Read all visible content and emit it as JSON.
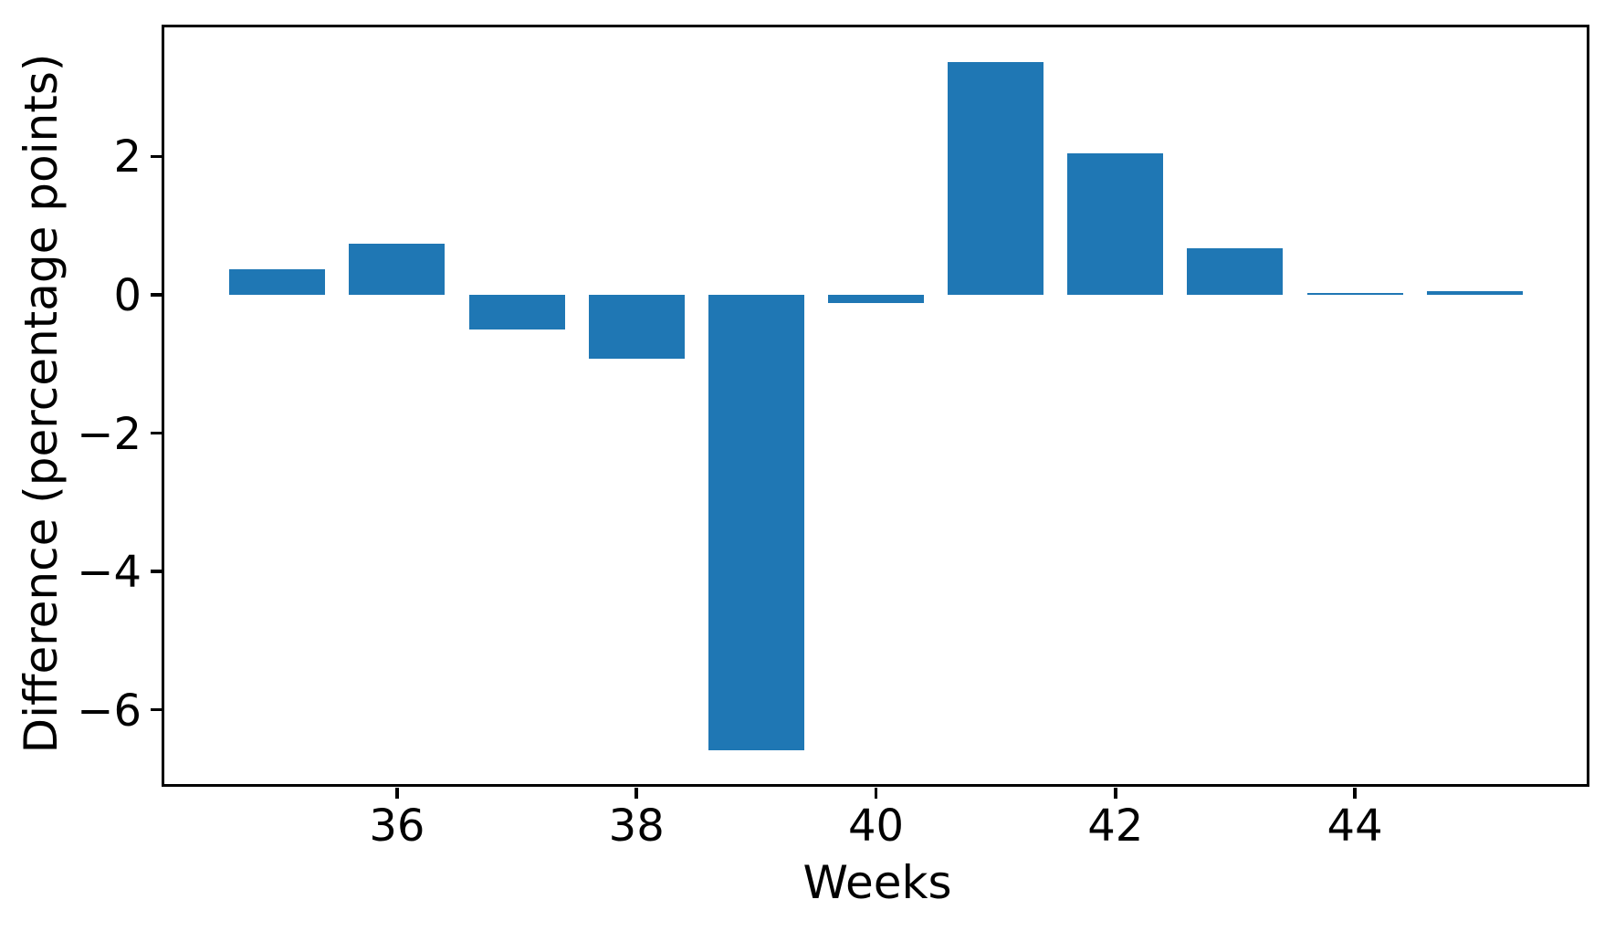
{
  "figure": {
    "background": "#ffffff",
    "spine_color": "#000000",
    "text_color": "#000000"
  },
  "chart_data": {
    "type": "bar",
    "x": [
      35,
      36,
      37,
      38,
      39,
      40,
      41,
      42,
      43,
      44,
      45
    ],
    "values": [
      0.37,
      0.74,
      -0.5,
      -0.92,
      -6.58,
      -0.12,
      3.36,
      2.04,
      0.67,
      0.03,
      0.05
    ],
    "bar_width": 0.8,
    "bar_color": "#1f77b4",
    "title": "",
    "xlabel": "Weeks",
    "ylabel": "Difference (percentage points)",
    "xlim": [
      34.06,
      45.94
    ],
    "ylim": [
      -7.08,
      3.86
    ],
    "xticks": [
      36,
      38,
      40,
      42,
      44
    ],
    "xtick_labels": [
      "36",
      "38",
      "40",
      "42",
      "44"
    ],
    "yticks": [
      2,
      0,
      -2,
      -4,
      -6
    ],
    "ytick_labels": [
      "2",
      "0",
      "−2",
      "−4",
      "−6"
    ],
    "grid": false,
    "legend": null
  }
}
